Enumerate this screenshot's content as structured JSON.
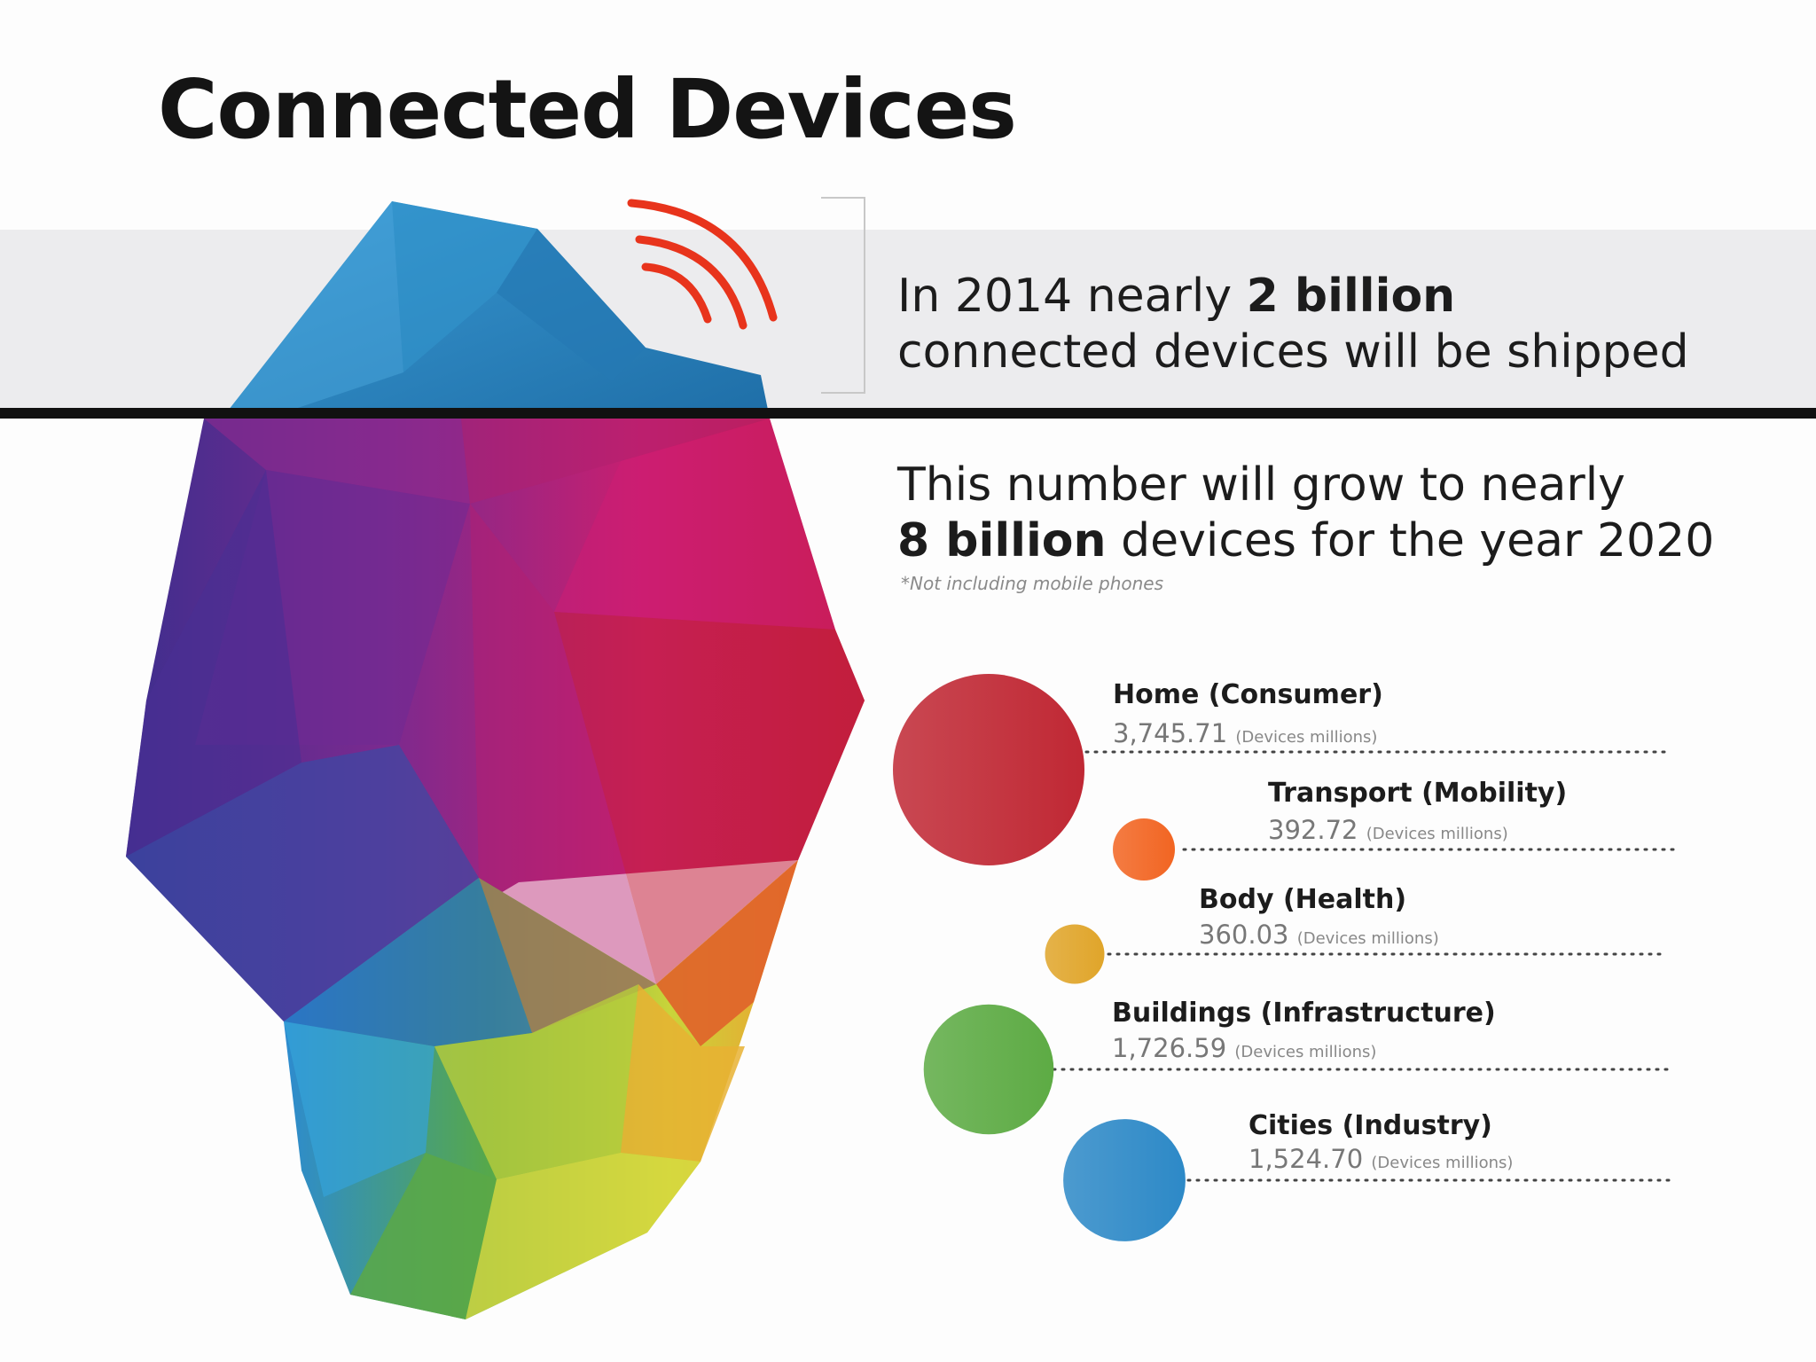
{
  "title": "Connected Devices",
  "statement_2014": {
    "prefix": "In 2014 nearly ",
    "highlight": "2 billion",
    "line2": "connected devices will be shipped"
  },
  "statement_2020": {
    "line1": "This number will grow to nearly",
    "highlight": "8 billion",
    "suffix": " devices for the year 2020",
    "footnote": "*Not including mobile phones"
  },
  "colors": {
    "signal": "#e8341c",
    "tip": "#2c86c2",
    "home": "#c02834",
    "transport": "#f26522",
    "body": "#e0a52a",
    "buildings": "#5dab44",
    "cities": "#2d89c7"
  },
  "chart_data": {
    "type": "bubble",
    "title": "",
    "unit": "(Devices millions)",
    "categories": [
      "Home (Consumer)",
      "Transport (Mobility)",
      "Body (Health)",
      "Buildings (Infrastructure)",
      "Cities (Industry)"
    ],
    "values": [
      3745.71,
      392.72,
      360.03,
      1726.59,
      1524.7
    ],
    "value_labels": [
      "3,745.71",
      "392.72",
      "360.03",
      "1,726.59",
      "1,524.70"
    ],
    "legend": "none",
    "grid": false
  }
}
